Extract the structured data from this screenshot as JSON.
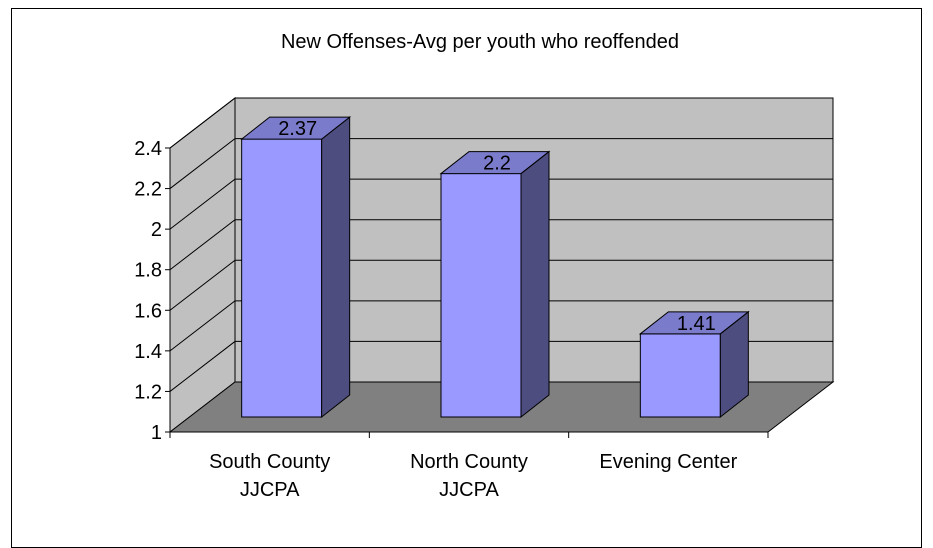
{
  "chart_data": {
    "type": "bar",
    "title": "New Offenses-Avg per youth who reoffended",
    "categories": [
      [
        "South County",
        "JJCPA"
      ],
      [
        "North County",
        "JJCPA"
      ],
      [
        "Evening Center"
      ]
    ],
    "values": [
      2.37,
      2.2,
      1.41
    ],
    "data_labels": [
      "2.37",
      "2.2",
      "1.41"
    ],
    "ylim": [
      1,
      2.4
    ],
    "yticks": [
      1,
      1.2,
      1.4,
      1.6,
      1.8,
      2,
      2.2,
      2.4
    ],
    "ytick_labels": [
      "1",
      "1.2",
      "1.4",
      "1.6",
      "1.8",
      "2",
      "2.2",
      "2.4"
    ],
    "grid": true,
    "three_d": true,
    "colors": {
      "bar_front": "#9999ff",
      "bar_side": "#4d4d80",
      "bar_top": "#7b7bcc",
      "back_wall": "#c0c0c0",
      "side_wall": "#c0c0c0",
      "floor": "#808080",
      "grid": "#000000"
    }
  }
}
